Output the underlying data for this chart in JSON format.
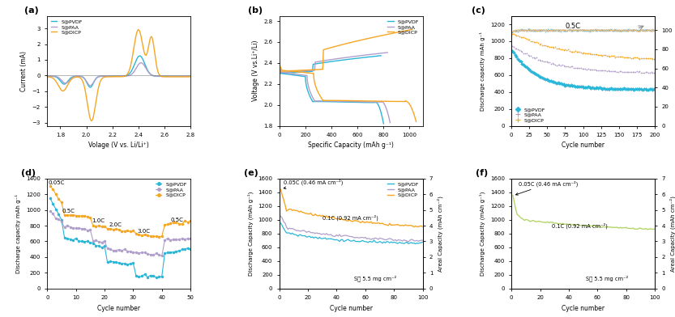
{
  "colors": {
    "pvdf": "#29b6d8",
    "paa": "#b09fca",
    "dicp": "#f5a623",
    "green": "#b5d56a"
  },
  "panel_labels": [
    "(a)",
    "(b)",
    "(c)",
    "(d)",
    "(e)",
    "(f)"
  ],
  "legend_labels": [
    "S@PVDF",
    "S@PAA",
    "S@DICP"
  ],
  "fig_bg": "#ffffff"
}
